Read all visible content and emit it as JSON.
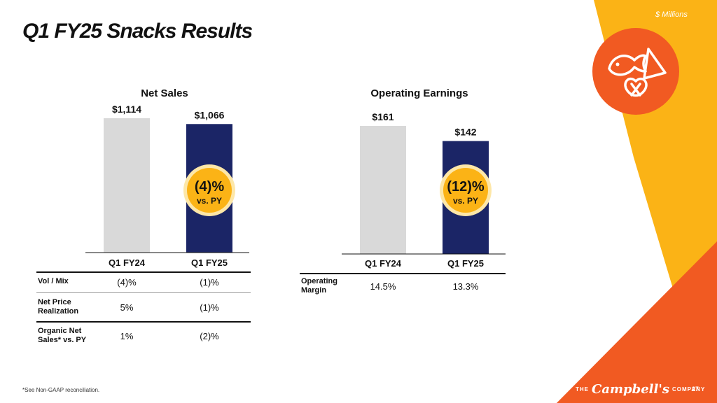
{
  "slide": {
    "title": "Q1 FY25 Snacks Results",
    "units": "$ Millions",
    "footnote": "*See Non-GAAP reconciliation.",
    "page_number": "27",
    "logo": {
      "prefix": "THE",
      "script": "Campbell's",
      "suffix": "COMPANY"
    }
  },
  "colors": {
    "bar_prior": "#d9d9d9",
    "bar_current": "#1b2566",
    "badge_fill": "#fbb316",
    "badge_ring": "#fde7a8",
    "brand_orange": "#f15a22",
    "brand_yellow": "#fbb316"
  },
  "icons": {
    "brand_badge": "snacks-icon"
  },
  "chart_data": [
    {
      "type": "bar",
      "title": "Net Sales",
      "categories": [
        "Q1 FY24",
        "Q1 FY25"
      ],
      "values": [
        1114,
        1066
      ],
      "value_labels": [
        "$1,114",
        "$1,066"
      ],
      "ylim": [
        0,
        1114
      ],
      "grid": false,
      "change": {
        "value": "(4)%",
        "label": "vs. PY"
      }
    },
    {
      "type": "bar",
      "title": "Operating Earnings",
      "categories": [
        "Q1 FY24",
        "Q1 FY25"
      ],
      "values": [
        161,
        142
      ],
      "value_labels": [
        "$161",
        "$142"
      ],
      "ylim": [
        0,
        161
      ],
      "grid": false,
      "change": {
        "value": "(12)%",
        "label": "vs. PY"
      }
    }
  ],
  "tables": {
    "net_sales": [
      {
        "label": "Vol / Mix",
        "values": [
          "(4)%",
          "(1)%"
        ]
      },
      {
        "label": "Net Price\nRealization",
        "values": [
          "5%",
          "(1)%"
        ]
      },
      {
        "label": "Organic Net\nSales* vs. PY",
        "values": [
          "1%",
          "(2)%"
        ]
      }
    ],
    "operating_earnings": [
      {
        "label": "Operating\nMargin",
        "values": [
          "14.5%",
          "13.3%"
        ]
      }
    ]
  }
}
